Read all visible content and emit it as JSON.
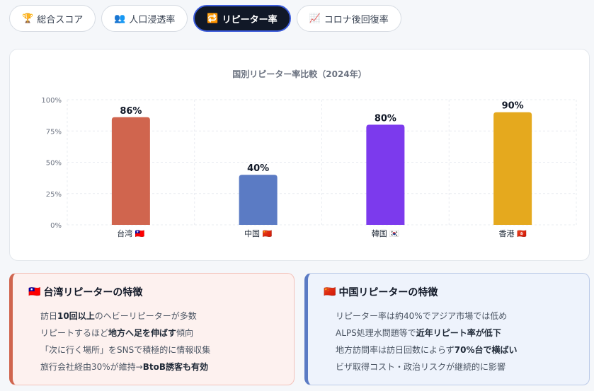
{
  "tabs": [
    {
      "icon": "🏆",
      "label": "総合スコア",
      "active": false
    },
    {
      "icon": "👥",
      "label": "人口浸透率",
      "active": false
    },
    {
      "icon": "🔁",
      "label": "リピーター率",
      "active": true
    },
    {
      "icon": "📈",
      "label": "コロナ後回復率",
      "active": false
    }
  ],
  "chart_data": {
    "type": "bar",
    "title": "国別リピーター率比較（2024年）",
    "categories": [
      "台湾 🇹🇼",
      "中国 🇨🇳",
      "韓国 🇰🇷",
      "香港 🇭🇰"
    ],
    "values": [
      86,
      40,
      80,
      90
    ],
    "value_labels": [
      "86%",
      "40%",
      "80%",
      "90%"
    ],
    "colors": [
      "#d0654e",
      "#5b7bc4",
      "#7c3aed",
      "#e5a91e"
    ],
    "ylim": [
      0,
      100
    ],
    "yticks": [
      0,
      25,
      50,
      75,
      100
    ],
    "ytick_labels": [
      "0%",
      "25%",
      "50%",
      "75%",
      "100%"
    ],
    "xlabel": "",
    "ylabel": "",
    "grid": true
  },
  "panels": {
    "taiwan": {
      "flag": "🇹🇼",
      "title": "台湾リピーターの特徴",
      "items": [
        {
          "pre": "訪日",
          "bold": "10回以上",
          "post": "のヘビーリピーターが多数"
        },
        {
          "pre": "リピートするほど",
          "bold": "地方へ足を伸ばす",
          "post": "傾向"
        },
        {
          "pre": "「次に行く場所」をSNSで積極的に情報収集",
          "bold": "",
          "post": ""
        },
        {
          "pre": "旅行会社経由30%が維持→",
          "bold": "BtoB誘客も有効",
          "post": ""
        }
      ]
    },
    "china": {
      "flag": "🇨🇳",
      "title": "中国リピーターの特徴",
      "items": [
        {
          "pre": "リピーター率は約40%でアジア市場では低め",
          "bold": "",
          "post": ""
        },
        {
          "pre": "ALPS処理水問題等で",
          "bold": "近年リピート率が低下",
          "post": ""
        },
        {
          "pre": "地方訪問率は訪日回数によらず",
          "bold": "70%台で横ばい",
          "post": ""
        },
        {
          "pre": "ビザ取得コスト・政治リスクが継続的に影響",
          "bold": "",
          "post": ""
        }
      ]
    }
  }
}
